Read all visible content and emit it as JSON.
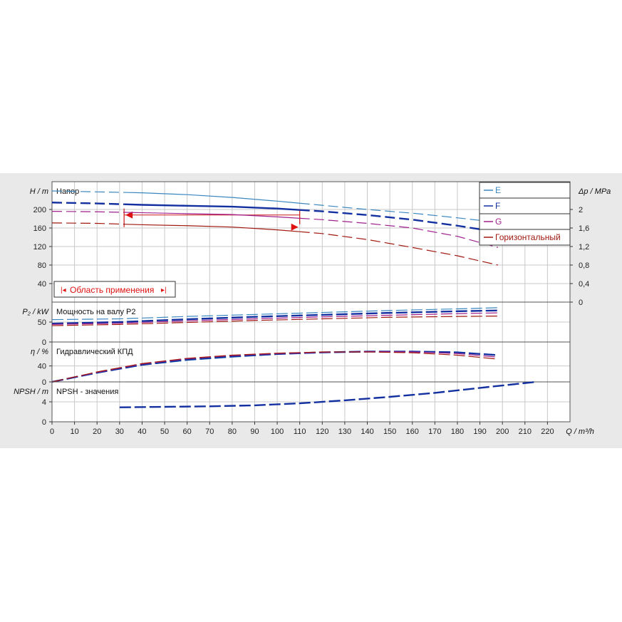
{
  "chart_data": [
    {
      "type": "line",
      "panel": "head",
      "title": "Напор",
      "ylabel": "H / m",
      "ylabel_right": "Δp / MPa",
      "xlim": [
        0,
        230
      ],
      "ylim": [
        0,
        260
      ],
      "yticks": [
        40,
        80,
        120,
        160,
        200
      ],
      "yticks_right": [
        "0",
        "0,4",
        "0,8",
        "1,2",
        "1,6",
        "2"
      ],
      "right_axis_factor": 0.01,
      "legend": "top-right",
      "legend_entries": [
        "E",
        "F",
        "G",
        "Горизонтальный"
      ],
      "application_range_label": "Область применения",
      "application_range_x": [
        32,
        110
      ],
      "series": [
        {
          "name": "E",
          "color": "#3a87c0",
          "width": 1.2,
          "x": [
            0,
            20,
            40,
            60,
            80,
            100,
            120,
            140,
            160,
            180,
            198
          ],
          "y": [
            240,
            238,
            236,
            232,
            226,
            218,
            209,
            200,
            192,
            182,
            172
          ]
        },
        {
          "name": "F",
          "color": "#1330a0",
          "width": 2.4,
          "x": [
            0,
            20,
            40,
            60,
            80,
            100,
            120,
            140,
            160,
            180,
            198
          ],
          "y": [
            215,
            213,
            210,
            208,
            206,
            202,
            196,
            188,
            178,
            165,
            151
          ]
        },
        {
          "name": "G",
          "color": "#a0208c",
          "width": 1.2,
          "x": [
            0,
            20,
            40,
            60,
            80,
            100,
            120,
            140,
            160,
            180,
            198
          ],
          "y": [
            196,
            195,
            193,
            191,
            189,
            184,
            178,
            170,
            160,
            142,
            118
          ]
        },
        {
          "name": "Горизонтальный",
          "color": "#a01810",
          "width": 1.2,
          "x": [
            0,
            20,
            40,
            60,
            80,
            100,
            120,
            140,
            160,
            180,
            198
          ],
          "y": [
            171,
            170,
            167,
            165,
            162,
            156,
            148,
            135,
            118,
            100,
            80
          ]
        }
      ]
    },
    {
      "type": "line",
      "panel": "power",
      "title": "Мощность на валу P2",
      "ylabel": "P₂ / kW",
      "ylim": [
        0,
        100
      ],
      "yticks": [
        0,
        50
      ],
      "series": [
        {
          "name": "E",
          "color": "#3a87c0",
          "width": 1.2,
          "x": [
            0,
            30,
            60,
            90,
            120,
            150,
            180,
            198
          ],
          "y": [
            56,
            58,
            64,
            69,
            74,
            79,
            83,
            86
          ]
        },
        {
          "name": "F",
          "color": "#1330a0",
          "width": 2.4,
          "x": [
            0,
            30,
            60,
            90,
            120,
            150,
            180,
            198
          ],
          "y": [
            46,
            50,
            57,
            63,
            68,
            73,
            77,
            79
          ]
        },
        {
          "name": "G",
          "color": "#a0208c",
          "width": 1.2,
          "x": [
            0,
            30,
            60,
            90,
            120,
            150,
            180,
            198
          ],
          "y": [
            44,
            47,
            53,
            58,
            63,
            67,
            71,
            73
          ]
        },
        {
          "name": "Горизонтальный",
          "color": "#a01810",
          "width": 1.2,
          "x": [
            0,
            30,
            60,
            90,
            120,
            150,
            180,
            198
          ],
          "y": [
            41,
            44,
            49,
            54,
            58,
            62,
            64,
            65
          ]
        }
      ]
    },
    {
      "type": "line",
      "panel": "efficiency",
      "title": "Гидравлический КПД",
      "ylabel": "η / %",
      "ylim": [
        0,
        100
      ],
      "yticks": [
        0,
        40
      ],
      "series": [
        {
          "name": "E",
          "color": "#3a87c0",
          "width": 1.2,
          "x": [
            0,
            20,
            40,
            60,
            80,
            100,
            120,
            140,
            160,
            180,
            198
          ],
          "y": [
            0,
            22,
            42,
            54,
            62,
            69,
            73,
            75,
            76,
            74,
            68
          ]
        },
        {
          "name": "F",
          "color": "#1330a0",
          "width": 2.4,
          "x": [
            0,
            20,
            40,
            60,
            80,
            100,
            120,
            140,
            160,
            180,
            198
          ],
          "y": [
            0,
            23,
            43,
            56,
            64,
            70,
            74,
            76,
            76,
            74,
            67
          ]
        },
        {
          "name": "G",
          "color": "#a0208c",
          "width": 1.2,
          "x": [
            0,
            20,
            40,
            60,
            80,
            100,
            120,
            140,
            160,
            180,
            198
          ],
          "y": [
            0,
            24,
            45,
            58,
            66,
            71,
            74,
            76,
            75,
            71,
            62
          ]
        },
        {
          "name": "Горизонтальный",
          "color": "#a01810",
          "width": 1.2,
          "x": [
            0,
            20,
            40,
            60,
            80,
            100,
            120,
            140,
            160,
            180,
            198
          ],
          "y": [
            0,
            25,
            46,
            59,
            67,
            72,
            75,
            75,
            73,
            67,
            57
          ]
        }
      ]
    },
    {
      "type": "line",
      "panel": "npsh",
      "title": "NPSH - значения",
      "ylabel": "NPSH / m",
      "ylim": [
        0,
        8
      ],
      "yticks": [
        0,
        4
      ],
      "series": [
        {
          "name": "F",
          "color": "#1330a0",
          "width": 2.4,
          "x": [
            30,
            50,
            70,
            90,
            110,
            130,
            150,
            170,
            190,
            215
          ],
          "y": [
            2.9,
            3.0,
            3.1,
            3.3,
            3.7,
            4.3,
            5.0,
            5.8,
            6.8,
            8.0
          ]
        }
      ]
    }
  ],
  "x_axis": {
    "label": "Q / m³/h",
    "ticks": [
      0,
      10,
      20,
      30,
      40,
      50,
      60,
      70,
      80,
      90,
      100,
      110,
      120,
      130,
      140,
      150,
      160,
      170,
      180,
      190,
      200,
      210,
      220
    ]
  }
}
